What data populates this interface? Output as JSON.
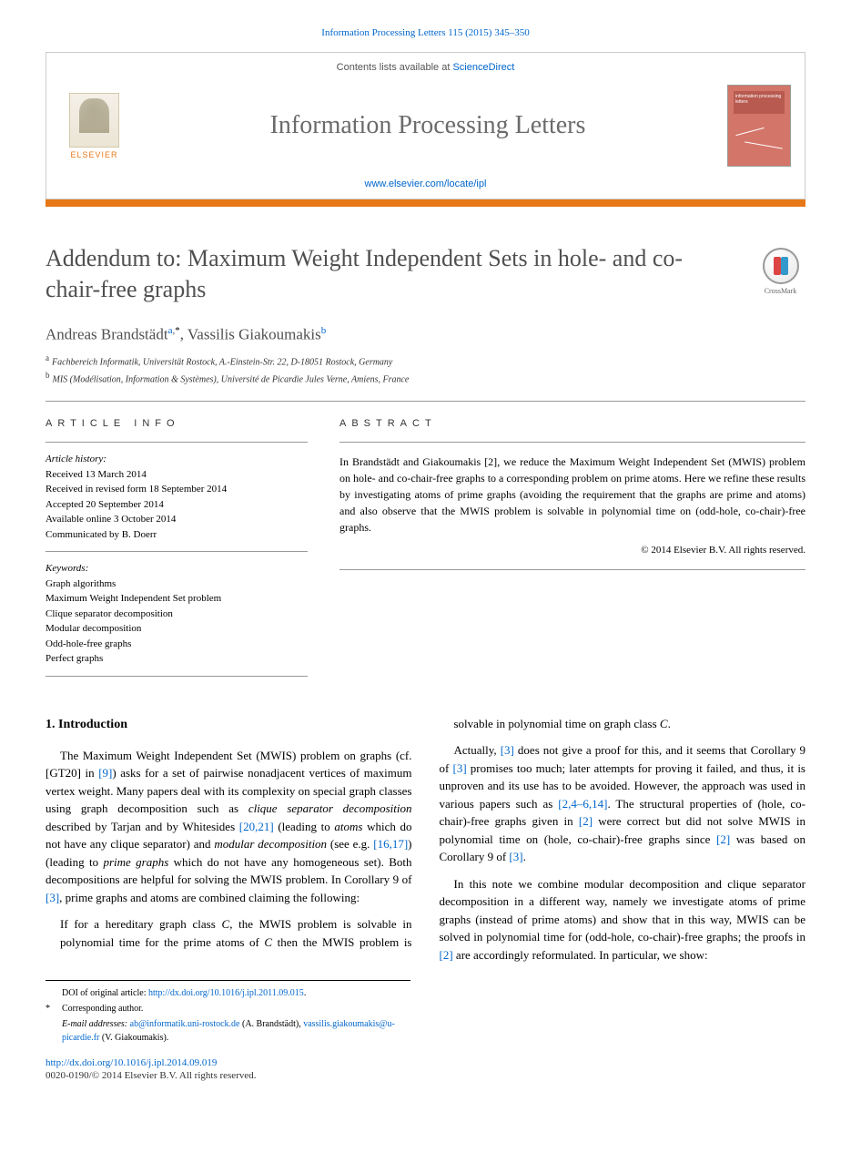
{
  "header": {
    "citation_link_text": "Information Processing Letters 115 (2015) 345–350",
    "contents_text": "Contents lists available at ",
    "contents_link": "ScienceDirect",
    "journal_name": "Information Processing Letters",
    "journal_url": "www.elsevier.com/locate/ipl",
    "publisher": "ELSEVIER",
    "orange_bar_color": "#e67817",
    "cover_bg_color": "#d4756a"
  },
  "title": "Addendum to: Maximum Weight Independent Sets in hole- and co-chair-free graphs",
  "crossmark_label": "CrossMark",
  "authors": {
    "a1_name": "Andreas Brandstädt",
    "a1_aff": "a",
    "a1_corr": "*",
    "a2_name": "Vassilis Giakoumakis",
    "a2_aff": "b"
  },
  "affiliations": {
    "a": "Fachbereich Informatik, Universität Rostock, A.-Einstein-Str. 22, D-18051 Rostock, Germany",
    "b": "MIS (Modélisation, Information & Systèmes), Université de Picardie Jules Verne, Amiens, France"
  },
  "info": {
    "header": "ARTICLE INFO",
    "history_label": "Article history:",
    "received": "Received 13 March 2014",
    "revised": "Received in revised form 18 September 2014",
    "accepted": "Accepted 20 September 2014",
    "online": "Available online 3 October 2014",
    "communicated": "Communicated by B. Doerr",
    "keywords_label": "Keywords:",
    "kw1": "Graph algorithms",
    "kw2": "Maximum Weight Independent Set problem",
    "kw3": "Clique separator decomposition",
    "kw4": "Modular decomposition",
    "kw5": "Odd-hole-free graphs",
    "kw6": "Perfect graphs"
  },
  "abstract": {
    "header": "ABSTRACT",
    "text_1": "In Brandstädt and Giakoumakis ",
    "ref_1": "[2]",
    "text_2": ", we reduce the Maximum Weight Independent Set (MWIS) problem on hole- and co-chair-free graphs to a corresponding problem on prime atoms. Here we refine these results by investigating atoms of prime graphs (avoiding the requirement that the graphs are prime and atoms) and also observe that the MWIS problem is solvable in polynomial time on (odd-hole, co-chair)-free graphs.",
    "copyright": "© 2014 Elsevier B.V. All rights reserved."
  },
  "body": {
    "sec1_title": "1. Introduction",
    "p1_a": "The Maximum Weight Independent Set (MWIS) problem on graphs (cf. [GT20] in ",
    "p1_r1": "[9]",
    "p1_b": ") asks for a set of pairwise nonadjacent vertices of maximum vertex weight. Many papers deal with its complexity on special graph classes using graph decomposition such as ",
    "p1_i1": "clique separator decomposition",
    "p1_c": " described by Tarjan and by Whitesides ",
    "p1_r2": "[20,21]",
    "p1_d": " (leading to ",
    "p1_i2": "atoms",
    "p1_e": " which do not have any clique separator) and ",
    "p1_i3": "modular decomposition",
    "p1_f": " (see e.g. ",
    "p1_r3": "[16,17]",
    "p1_g": ") (leading to ",
    "p1_i4": "prime graphs",
    "p1_h": " which do not have any homogeneous set). Both decompositions are helpful for solving the MWIS problem. In Corollary 9 of ",
    "p1_r4": "[3]",
    "p1_i": ", prime graphs and atoms are combined claiming the following:",
    "quote_a": "If for a hereditary graph class ",
    "quote_c1": "C",
    "quote_b": ", the MWIS problem is solvable in polynomial time for the prime atoms of ",
    "quote_c2": "C",
    "quote_c": " then the MWIS problem is solvable in polynomial time on graph class ",
    "quote_c3": "C",
    "quote_d": ".",
    "p2_a": "Actually, ",
    "p2_r1": "[3]",
    "p2_b": " does not give a proof for this, and it seems that Corollary 9 of ",
    "p2_r2": "[3]",
    "p2_c": " promises too much; later attempts for proving it failed, and thus, it is unproven and its use has to be avoided. However, the approach was used in various papers such as ",
    "p2_r3": "[2,4–6,14]",
    "p2_d": ". The structural properties of (hole, co-chair)-free graphs given in ",
    "p2_r4": "[2]",
    "p2_e": " were correct but did not solve MWIS in polynomial time on (hole, co-chair)-free graphs since ",
    "p2_r5": "[2]",
    "p2_f": " was based on Corollary 9 of ",
    "p2_r6": "[3]",
    "p2_g": ".",
    "p3_a": "In this note we combine modular decomposition and clique separator decomposition in a different way, namely we investigate atoms of prime graphs (instead of prime atoms) and show that in this way, MWIS can be solved in polynomial time for (odd-hole, co-chair)-free graphs; the proofs in ",
    "p3_r1": "[2]",
    "p3_b": " are accordingly reformulated. In particular, we show:"
  },
  "footnotes": {
    "doi_label": "DOI of original article: ",
    "doi_url": "http://dx.doi.org/10.1016/j.ipl.2011.09.015",
    "doi_period": ".",
    "corr": "Corresponding author.",
    "email_label": "E-mail addresses:",
    "email1": "ab@informatik.uni-rostock.de",
    "email1_name": " (A. Brandstädt), ",
    "email2": "vassilis.giakoumakis@u-picardie.fr",
    "email2_name": " (V. Giakoumakis)."
  },
  "footer": {
    "doi": "http://dx.doi.org/10.1016/j.ipl.2014.09.019",
    "rights": "0020-0190/© 2014 Elsevier B.V. All rights reserved."
  }
}
